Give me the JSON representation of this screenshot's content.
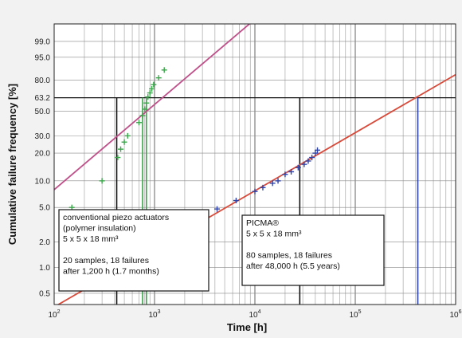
{
  "chart_data": {
    "type": "scatter",
    "x_scale": "log",
    "y_scale": "weibull",
    "xlabel": "Time [h]",
    "ylabel": "Cumulative failure frequency [%]",
    "xlim": [
      100,
      1000000
    ],
    "x_ticks": [
      {
        "value": 100,
        "base": "10",
        "exp": "2"
      },
      {
        "value": 1000,
        "base": "10",
        "exp": "3"
      },
      {
        "value": 10000,
        "base": "10",
        "exp": "4"
      },
      {
        "value": 100000,
        "base": "10",
        "exp": "5"
      },
      {
        "value": 1000000,
        "base": "10",
        "exp": "6"
      }
    ],
    "y_ticks": [
      {
        "value": 99.0,
        "label": "99.0"
      },
      {
        "value": 95.0,
        "label": "95.0"
      },
      {
        "value": 80.0,
        "label": "80.0"
      },
      {
        "value": 63.2,
        "label": "63.2"
      },
      {
        "value": 50.0,
        "label": "50.0"
      },
      {
        "value": 30.0,
        "label": "30.0"
      },
      {
        "value": 20.0,
        "label": "20.0"
      },
      {
        "value": 10.0,
        "label": "10.0"
      },
      {
        "value": 5.0,
        "label": "5.0"
      },
      {
        "value": 2.0,
        "label": "2.0"
      },
      {
        "value": 1.0,
        "label": "1.0"
      },
      {
        "value": 0.5,
        "label": "0.5"
      }
    ],
    "reference_level": 63.2,
    "grid": true,
    "series": [
      {
        "color": "#3aa64a",
        "fit_color": "#c0508a",
        "char_life": 1200,
        "points": [
          [
            150,
            5.0
          ],
          [
            300,
            10.0
          ],
          [
            430,
            18.0
          ],
          [
            460,
            22.0
          ],
          [
            500,
            26.0
          ],
          [
            540,
            30.0
          ],
          [
            700,
            40.0
          ],
          [
            760,
            46.0
          ],
          [
            800,
            52.0
          ],
          [
            830,
            58.0
          ],
          [
            860,
            64.0
          ],
          [
            900,
            68.0
          ],
          [
            940,
            72.0
          ],
          [
            980,
            76.0
          ],
          [
            1100,
            82.0
          ],
          [
            1250,
            88.0
          ]
        ]
      },
      {
        "color": "#2f44a8",
        "fit_color": "#d84a3a",
        "char_life": 400000,
        "points": [
          [
            2500,
            3.4
          ],
          [
            4200,
            4.8
          ],
          [
            6500,
            6.0
          ],
          [
            10000,
            7.6
          ],
          [
            12000,
            8.4
          ],
          [
            15000,
            9.4
          ],
          [
            17000,
            10.0
          ],
          [
            20000,
            11.8
          ],
          [
            23000,
            12.6
          ],
          [
            27000,
            14.0
          ],
          [
            31000,
            15.2
          ],
          [
            34000,
            16.5
          ],
          [
            37000,
            18.0
          ],
          [
            40000,
            20.0
          ],
          [
            42000,
            21.5
          ]
        ]
      }
    ],
    "vertical_markers": [
      {
        "x": 420,
        "color": "#111111"
      },
      {
        "x": 760,
        "color": "#3aa64a"
      },
      {
        "x": 830,
        "color": "#3aa64a"
      },
      {
        "x": 28000,
        "color": "#111111"
      },
      {
        "x": 420000,
        "color": "#2f44a8"
      }
    ],
    "annotations": [
      {
        "lines": [
          "conventional piezo actuators",
          "(polymer insulation)",
          "5 x 5 x 18 mm³",
          "",
          "20 samples, 18 failures",
          "after 1,200 h (1.7 months)"
        ]
      },
      {
        "lines": [
          "PICMA®",
          "5 x 5 x 18 mm³",
          "",
          "80 samples, 18 failures",
          "after 48,000 h (5.5 years)"
        ]
      }
    ]
  }
}
